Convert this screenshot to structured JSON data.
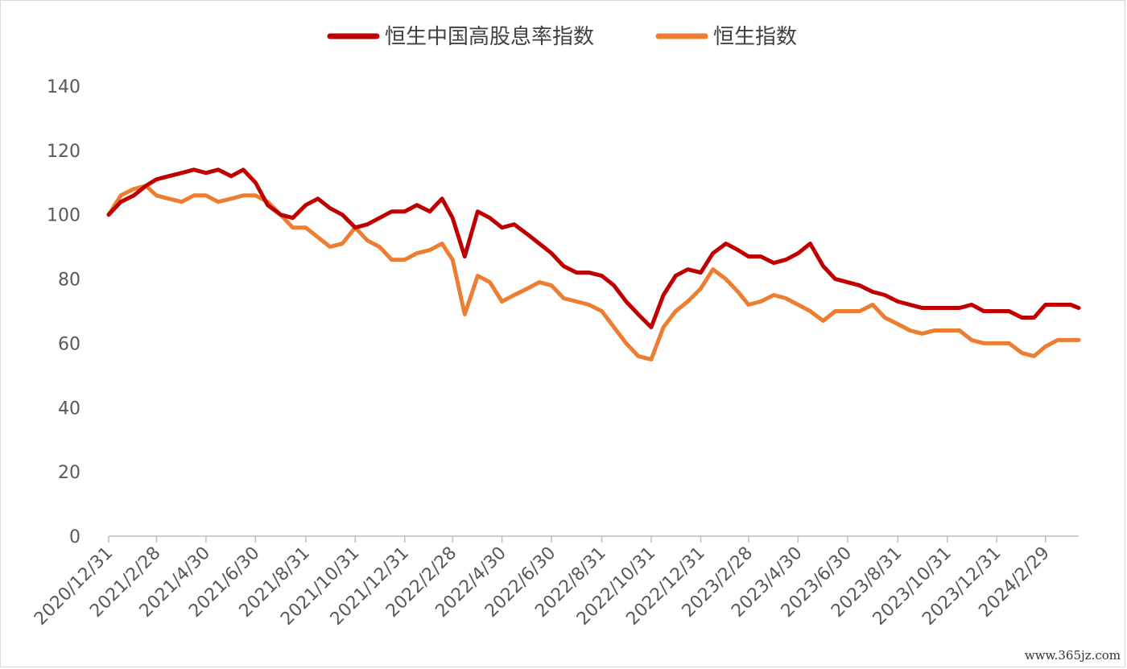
{
  "chart_data": {
    "type": "line",
    "title": "",
    "xlabel": "",
    "ylabel": "",
    "ylim": [
      0,
      140
    ],
    "yticks": [
      0,
      20,
      40,
      60,
      80,
      100,
      120,
      140
    ],
    "x_tick_labels": [
      "2020/12/31",
      "2021/2/28",
      "2021/4/30",
      "2021/6/30",
      "2021/8/31",
      "2021/10/31",
      "2021/12/31",
      "2022/2/28",
      "2022/4/30",
      "2022/6/30",
      "2022/8/31",
      "2022/10/31",
      "2022/12/31",
      "2023/2/28",
      "2023/4/30",
      "2023/6/30",
      "2023/8/31",
      "2023/10/31",
      "2023/12/31",
      "2024/2/29"
    ],
    "grid": false,
    "legend_position": "top",
    "x": [
      "2020/12/31",
      "2021/1/15",
      "2021/1/31",
      "2021/2/15",
      "2021/2/28",
      "2021/3/15",
      "2021/3/31",
      "2021/4/15",
      "2021/4/30",
      "2021/5/15",
      "2021/5/31",
      "2021/6/15",
      "2021/6/30",
      "2021/7/15",
      "2021/7/31",
      "2021/8/15",
      "2021/8/31",
      "2021/9/15",
      "2021/9/30",
      "2021/10/15",
      "2021/10/31",
      "2021/11/15",
      "2021/11/30",
      "2021/12/15",
      "2021/12/31",
      "2022/1/15",
      "2022/1/31",
      "2022/2/15",
      "2022/2/28",
      "2022/3/15",
      "2022/3/31",
      "2022/4/15",
      "2022/4/30",
      "2022/5/15",
      "2022/5/31",
      "2022/6/15",
      "2022/6/30",
      "2022/7/15",
      "2022/7/31",
      "2022/8/15",
      "2022/8/31",
      "2022/9/15",
      "2022/9/30",
      "2022/10/15",
      "2022/10/31",
      "2022/11/15",
      "2022/11/30",
      "2022/12/15",
      "2022/12/31",
      "2023/1/15",
      "2023/1/31",
      "2023/2/15",
      "2023/2/28",
      "2023/3/15",
      "2023/3/31",
      "2023/4/15",
      "2023/4/30",
      "2023/5/15",
      "2023/5/31",
      "2023/6/15",
      "2023/6/30",
      "2023/7/15",
      "2023/7/31",
      "2023/8/15",
      "2023/8/31",
      "2023/9/15",
      "2023/9/30",
      "2023/10/15",
      "2023/10/31",
      "2023/11/15",
      "2023/11/30",
      "2023/12/15",
      "2023/12/31",
      "2024/1/15",
      "2024/1/31",
      "2024/2/15",
      "2024/2/29",
      "2024/3/15",
      "2024/3/31",
      "2024/4/10"
    ],
    "series": [
      {
        "name": "恒生中国高股息率指数",
        "color": "#c00000",
        "values": [
          100,
          104,
          106,
          109,
          111,
          112,
          113,
          114,
          113,
          114,
          112,
          114,
          110,
          103,
          100,
          99,
          103,
          105,
          102,
          100,
          96,
          97,
          99,
          101,
          101,
          103,
          101,
          105,
          99,
          87,
          101,
          99,
          96,
          97,
          94,
          91,
          88,
          84,
          82,
          82,
          81,
          78,
          73,
          69,
          65,
          75,
          81,
          83,
          82,
          88,
          91,
          89,
          87,
          87,
          85,
          86,
          88,
          91,
          84,
          80,
          79,
          78,
          76,
          75,
          73,
          72,
          71,
          71,
          71,
          71,
          72,
          70,
          70,
          70,
          68,
          68,
          72,
          72,
          72,
          71
        ]
      },
      {
        "name": "恒生指数",
        "color": "#ed7d31",
        "values": [
          100,
          106,
          108,
          109,
          106,
          105,
          104,
          106,
          106,
          104,
          105,
          106,
          106,
          104,
          100,
          96,
          96,
          93,
          90,
          91,
          96,
          92,
          90,
          86,
          86,
          88,
          89,
          91,
          86,
          69,
          81,
          79,
          73,
          75,
          77,
          79,
          78,
          74,
          73,
          72,
          70,
          65,
          60,
          56,
          55,
          65,
          70,
          73,
          77,
          83,
          80,
          76,
          72,
          73,
          75,
          74,
          72,
          70,
          67,
          70,
          70,
          70,
          72,
          68,
          66,
          64,
          63,
          64,
          64,
          64,
          61,
          60,
          60,
          60,
          57,
          56,
          59,
          61,
          61,
          61
        ]
      }
    ]
  },
  "watermark": "www.365jz.com"
}
